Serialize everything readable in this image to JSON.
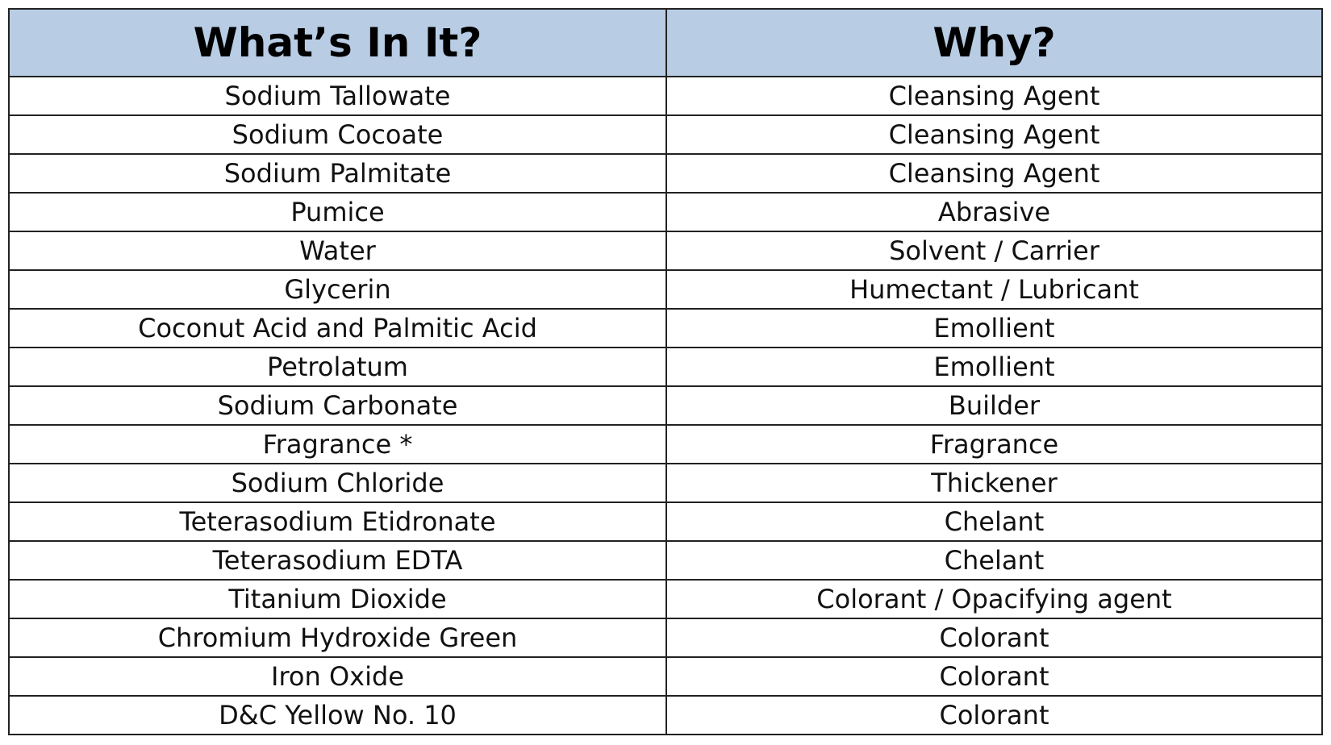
{
  "table": {
    "headers": [
      "What’s In It?",
      "Why?"
    ],
    "header_bg": "#b8cce4",
    "rows": [
      [
        "Sodium Tallowate",
        "Cleansing Agent"
      ],
      [
        "Sodium Cocoate",
        "Cleansing Agent"
      ],
      [
        "Sodium Palmitate",
        "Cleansing Agent"
      ],
      [
        "Pumice",
        "Abrasive"
      ],
      [
        "Water",
        "Solvent / Carrier"
      ],
      [
        "Glycerin",
        "Humectant / Lubricant"
      ],
      [
        "Coconut Acid and Palmitic Acid",
        "Emollient"
      ],
      [
        "Petrolatum",
        "Emollient"
      ],
      [
        "Sodium Carbonate",
        "Builder"
      ],
      [
        "Fragrance *",
        "Fragrance"
      ],
      [
        "Sodium Chloride",
        "Thickener"
      ],
      [
        "Teterasodium Etidronate",
        "Chelant"
      ],
      [
        "Teterasodium EDTA",
        "Chelant"
      ],
      [
        "Titanium Dioxide",
        "Colorant / Opacifying agent"
      ],
      [
        "Chromium Hydroxide Green",
        "Colorant"
      ],
      [
        "Iron Oxide",
        "Colorant"
      ],
      [
        "D&C Yellow No. 10",
        "Colorant"
      ]
    ]
  }
}
